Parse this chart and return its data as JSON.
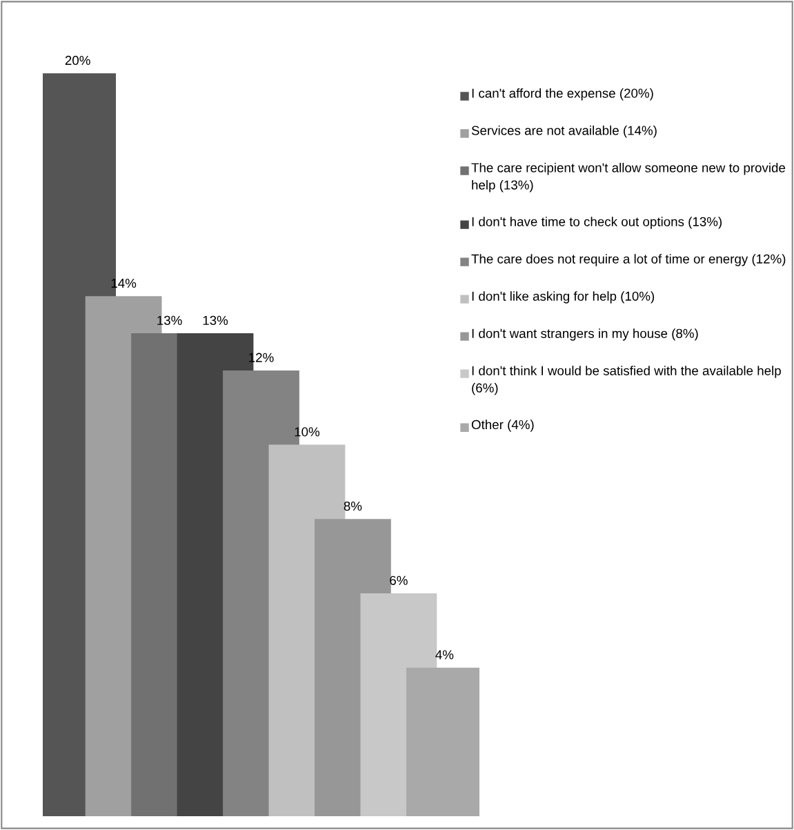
{
  "chart_data": {
    "type": "bar",
    "categories": [
      null
    ],
    "legend": "right",
    "series": [
      {
        "name": "I can't afford the expense (20%)",
        "color": "#555555",
        "values": [
          20
        ],
        "value_labels": [
          "20%"
        ]
      },
      {
        "name": "Services are not available (14%)",
        "color": "#a0a0a0",
        "values": [
          14
        ],
        "value_labels": [
          "14%"
        ]
      },
      {
        "name": "The care recipient won't allow someone new to provide help (13%)",
        "color": "#717171",
        "values": [
          13
        ],
        "value_labels": [
          "13%"
        ]
      },
      {
        "name": "I don't have time to check out options (13%)",
        "color": "#444444",
        "values": [
          13
        ],
        "value_labels": [
          "13%"
        ]
      },
      {
        "name": "The care does not require a lot of time or energy (12%)",
        "color": "#838383",
        "values": [
          12
        ],
        "value_labels": [
          "12%"
        ]
      },
      {
        "name": "I don't like asking for help (10%)",
        "color": "#c0c0c0",
        "values": [
          10
        ],
        "value_labels": [
          "10%"
        ]
      },
      {
        "name": "I don't want strangers in my house (8%)",
        "color": "#979797",
        "values": [
          8
        ],
        "value_labels": [
          "8%"
        ]
      },
      {
        "name": "I don't think I would be satisfied with the available help (6%)",
        "color": "#c8c8c8",
        "values": [
          6
        ],
        "value_labels": [
          "6%"
        ]
      },
      {
        "name": "Other (4%)",
        "color": "#a9a9a9",
        "values": [
          4
        ],
        "value_labels": [
          "4%"
        ]
      }
    ]
  }
}
